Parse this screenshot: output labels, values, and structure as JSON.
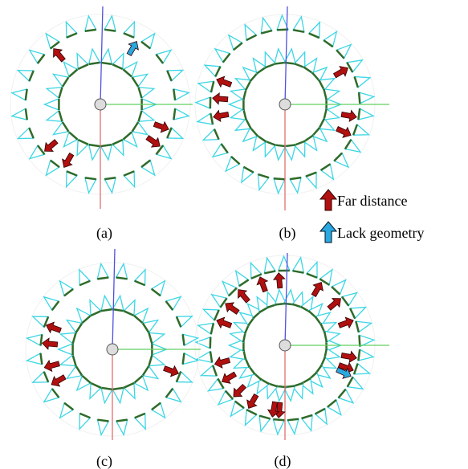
{
  "panels": [
    {
      "label": "(a)"
    },
    {
      "label": "(b)"
    },
    {
      "label": "(c)"
    },
    {
      "label": "(d)"
    }
  ],
  "legend": {
    "far_distance": "Far distance",
    "lack_geometry": "Lack geometry"
  }
}
